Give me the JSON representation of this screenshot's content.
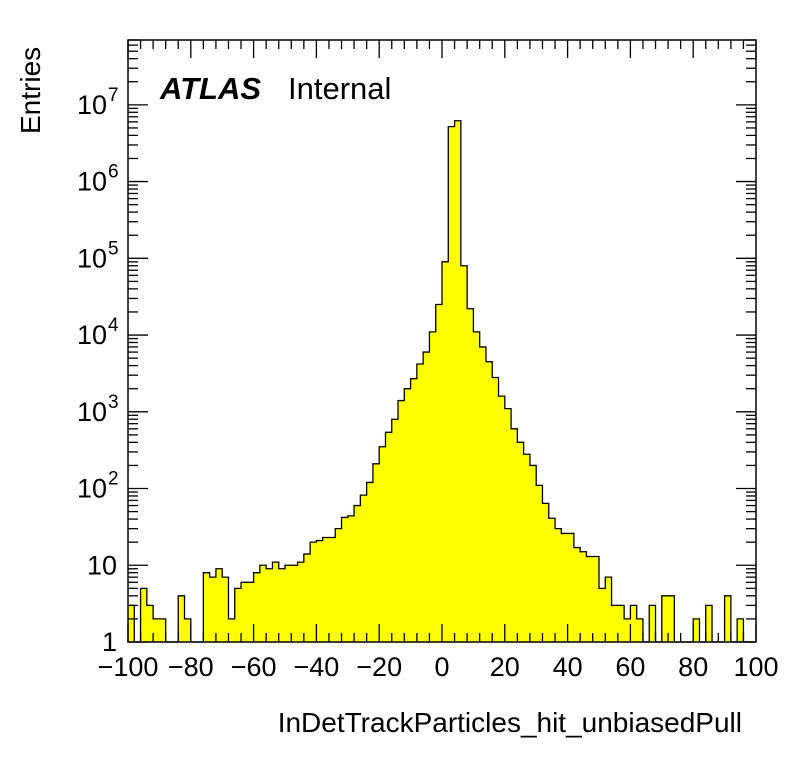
{
  "chart_data": {
    "type": "bar",
    "subtype": "histogram",
    "title": "",
    "label_bold": "ATLAS",
    "label_plain": "Internal",
    "xlabel": "InDetTrackParticles_hit_unbiasedPull",
    "ylabel": "Entries",
    "xlim": [
      -100,
      100
    ],
    "ylim": [
      1,
      70000000
    ],
    "yscale": "log",
    "grid": false,
    "fill_color": "#ffff00",
    "line_color": "#000000",
    "x_ticks": [
      -100,
      -80,
      -60,
      -40,
      -20,
      0,
      20,
      40,
      60,
      80,
      100
    ],
    "x_tick_labels": [
      "−100",
      "−80",
      "−60",
      "−40",
      "−20",
      "0",
      "20",
      "40",
      "60",
      "80",
      "100"
    ],
    "y_tick_labels": [
      {
        "value": 1,
        "base": "1",
        "exp": ""
      },
      {
        "value": 10,
        "base": "10",
        "exp": ""
      },
      {
        "value": 100,
        "base": "10",
        "exp": "2"
      },
      {
        "value": 1000,
        "base": "10",
        "exp": "3"
      },
      {
        "value": 10000,
        "base": "10",
        "exp": "4"
      },
      {
        "value": 100000,
        "base": "10",
        "exp": "5"
      },
      {
        "value": 1000000,
        "base": "10",
        "exp": "6"
      },
      {
        "value": 10000000,
        "base": "10",
        "exp": "7"
      }
    ],
    "bin_edges_start": -100,
    "bin_width": 2,
    "values": [
      3,
      1,
      5,
      3,
      2,
      2,
      1,
      1,
      4,
      2,
      1,
      1,
      8,
      7,
      9,
      7,
      2,
      5,
      6,
      6,
      8,
      10,
      9,
      11,
      9,
      10,
      10,
      11,
      14,
      20,
      21,
      23,
      23,
      30,
      42,
      44,
      60,
      82,
      120,
      210,
      350,
      540,
      800,
      1400,
      2000,
      2700,
      4200,
      6000,
      11000,
      25000,
      90000,
      5200000,
      6200000,
      80000,
      22000,
      11000,
      7000,
      4500,
      2800,
      1600,
      1100,
      600,
      400,
      280,
      200,
      110,
      64,
      41,
      30,
      26,
      26,
      17,
      15,
      13,
      13,
      5,
      7,
      3,
      3,
      2,
      3,
      2,
      1,
      3,
      1,
      4,
      4,
      1,
      1,
      1,
      2,
      1,
      3,
      1,
      1,
      4,
      1,
      2,
      1,
      1
    ]
  }
}
